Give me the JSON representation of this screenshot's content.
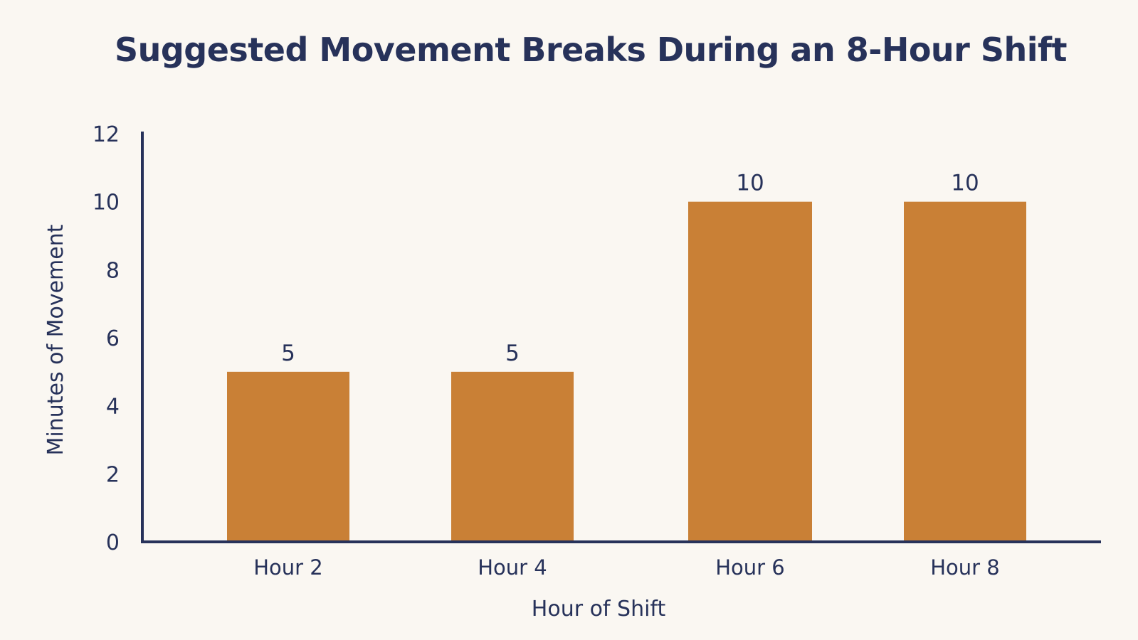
{
  "chart_data": {
    "type": "bar",
    "title": "Suggested Movement Breaks During an 8-Hour Shift",
    "xlabel": "Hour of Shift",
    "ylabel": "Minutes of Movement",
    "categories": [
      "Hour 2",
      "Hour 4",
      "Hour 6",
      "Hour 8"
    ],
    "values": [
      5,
      5,
      10,
      10
    ],
    "data_labels": [
      "5",
      "5",
      "10",
      "10"
    ],
    "ylim": [
      0,
      12
    ],
    "yticks": [
      "0",
      "2",
      "4",
      "6",
      "8",
      "10",
      "12"
    ],
    "grid": false,
    "legend": "none",
    "colors": {
      "bar": "#c98036",
      "text": "#27325a",
      "axis": "#27325a",
      "background": "#faf7f2"
    }
  }
}
